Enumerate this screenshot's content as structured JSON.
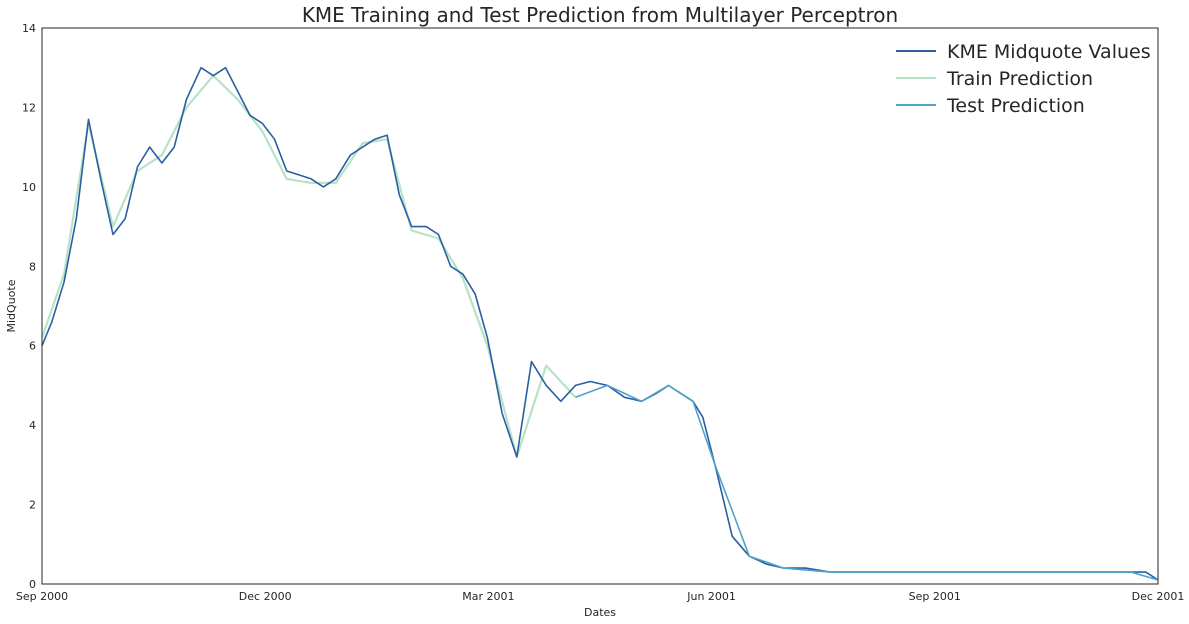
{
  "chart_data": {
    "type": "line",
    "title": "KME Training and Test Prediction from Multilayer Perceptron",
    "xlabel": "Dates",
    "ylabel": "MidQuote",
    "x_ticks": [
      "Sep 2000",
      "Dec 2000",
      "Mar 2001",
      "Jun 2001",
      "Sep 2001",
      "Dec 2001"
    ],
    "y_ticks": [
      "0",
      "2",
      "4",
      "6",
      "8",
      "10",
      "12",
      "14"
    ],
    "xlim": [
      "2000-09-01",
      "2001-12-01"
    ],
    "ylim": [
      0,
      14
    ],
    "grid": false,
    "legend_position": "top-right",
    "colors": {
      "actual": "#2b5fa3",
      "train": "#b7e3c4",
      "test": "#4fa3c7"
    },
    "series": [
      {
        "name": "KME Midquote Values",
        "x": [
          "2000-09-01",
          "2000-09-05",
          "2000-09-10",
          "2000-09-15",
          "2000-09-20",
          "2000-09-25",
          "2000-09-30",
          "2000-10-05",
          "2000-10-10",
          "2000-10-15",
          "2000-10-20",
          "2000-10-25",
          "2000-10-30",
          "2000-11-05",
          "2000-11-10",
          "2000-11-15",
          "2000-11-20",
          "2000-11-25",
          "2000-11-30",
          "2000-12-05",
          "2000-12-10",
          "2000-12-15",
          "2000-12-20",
          "2000-12-25",
          "2000-12-30",
          "2001-01-05",
          "2001-01-10",
          "2001-01-15",
          "2001-01-20",
          "2001-01-25",
          "2001-01-30",
          "2001-02-05",
          "2001-02-10",
          "2001-02-15",
          "2001-02-20",
          "2001-02-25",
          "2001-03-02",
          "2001-03-08",
          "2001-03-14",
          "2001-03-20",
          "2001-03-26",
          "2001-04-01",
          "2001-04-07",
          "2001-04-13",
          "2001-04-20",
          "2001-04-27",
          "2001-05-04",
          "2001-05-10",
          "2001-05-15",
          "2001-05-20",
          "2001-05-25",
          "2001-05-29",
          "2001-06-03",
          "2001-06-10",
          "2001-06-17",
          "2001-06-24",
          "2001-07-01",
          "2001-07-10",
          "2001-07-20",
          "2001-08-01",
          "2001-08-10",
          "2001-08-20",
          "2001-09-01",
          "2001-09-10",
          "2001-09-20",
          "2001-09-30",
          "2001-10-05",
          "2001-10-10",
          "2001-10-15",
          "2001-10-20",
          "2001-10-25",
          "2001-10-30",
          "2001-11-05",
          "2001-11-12",
          "2001-11-20",
          "2001-11-26",
          "2001-12-01"
        ],
        "y": [
          6.0,
          6.6,
          7.6,
          9.2,
          11.7,
          10.2,
          8.8,
          9.2,
          10.5,
          11.0,
          10.6,
          11.0,
          12.2,
          13.0,
          12.8,
          13.0,
          12.4,
          11.8,
          11.6,
          11.2,
          10.4,
          10.3,
          10.2,
          10.0,
          10.2,
          10.8,
          11.0,
          11.2,
          11.3,
          9.8,
          9.0,
          9.0,
          8.8,
          8.0,
          7.8,
          7.3,
          6.2,
          4.3,
          3.2,
          5.6,
          5.0,
          4.6,
          5.0,
          5.1,
          5.0,
          4.7,
          4.6,
          4.8,
          5.0,
          4.8,
          4.6,
          4.2,
          3.0,
          1.2,
          0.7,
          0.5,
          0.4,
          0.4,
          0.3,
          0.3,
          0.3,
          0.3,
          0.3,
          0.3,
          0.3,
          0.3,
          0.3,
          0.3,
          0.3,
          0.3,
          0.3,
          0.3,
          0.3,
          0.3,
          0.3,
          0.3,
          0.1
        ]
      },
      {
        "name": "Train Prediction",
        "x": [
          "2000-09-01",
          "2000-09-10",
          "2000-09-20",
          "2000-09-30",
          "2000-10-10",
          "2000-10-20",
          "2000-10-30",
          "2000-11-10",
          "2000-11-20",
          "2000-11-30",
          "2000-12-10",
          "2000-12-20",
          "2000-12-30",
          "2001-01-10",
          "2001-01-20",
          "2001-01-30",
          "2001-02-10",
          "2001-02-20",
          "2001-03-02",
          "2001-03-14",
          "2001-03-26",
          "2001-04-07"
        ],
        "y": [
          6.2,
          7.8,
          11.6,
          9.0,
          10.4,
          10.8,
          12.0,
          12.8,
          12.2,
          11.4,
          10.2,
          10.1,
          10.1,
          11.1,
          11.2,
          8.9,
          8.7,
          7.7,
          6.0,
          3.2,
          5.5,
          4.7
        ]
      },
      {
        "name": "Test Prediction",
        "x": [
          "2001-04-07",
          "2001-04-20",
          "2001-05-04",
          "2001-05-15",
          "2001-05-25",
          "2001-06-03",
          "2001-06-17",
          "2001-07-01",
          "2001-07-20",
          "2001-08-10",
          "2001-09-01",
          "2001-09-20",
          "2001-10-05",
          "2001-10-20",
          "2001-11-05",
          "2001-11-20",
          "2001-12-01"
        ],
        "y": [
          4.7,
          5.0,
          4.6,
          5.0,
          4.6,
          3.0,
          0.7,
          0.4,
          0.3,
          0.3,
          0.3,
          0.3,
          0.3,
          0.3,
          0.3,
          0.3,
          0.1
        ]
      }
    ]
  }
}
